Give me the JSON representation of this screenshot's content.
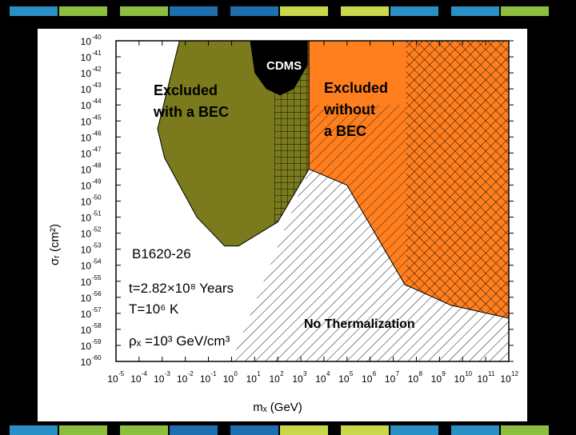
{
  "slide": {
    "stripe_colors": [
      "#2a8fc4",
      "#8cbf3f",
      "#1e6fb0",
      "#c9d84a"
    ]
  },
  "chart_data": {
    "type": "area",
    "x_scale": "log",
    "y_scale": "log",
    "xlabel": "mₓ (GeV)",
    "ylabel": "σᵣ (cm²)",
    "xlim": [
      -5,
      12
    ],
    "ylim": [
      -60,
      -40
    ],
    "x_ticks": [
      -5,
      -4,
      -3,
      -2,
      -1,
      0,
      1,
      2,
      3,
      4,
      5,
      6,
      7,
      8,
      9,
      10,
      11,
      12
    ],
    "y_ticks": [
      -40,
      -41,
      -42,
      -43,
      -44,
      -45,
      -46,
      -47,
      -48,
      -49,
      -50,
      -51,
      -52,
      -53,
      -54,
      -55,
      -56,
      -57,
      -58,
      -59,
      -60
    ],
    "tick_base": "10",
    "regions": [
      {
        "label_lines": [
          "Excluded",
          "with a BEC"
        ],
        "color": "#7b7b1e",
        "polygon_log": [
          [
            -2.25,
            -40
          ],
          [
            3.35,
            -40
          ],
          [
            3.35,
            -48
          ],
          [
            2.0,
            -51.3
          ],
          [
            0.3,
            -52.8
          ],
          [
            -0.3,
            -52.8
          ],
          [
            -1.5,
            -51
          ],
          [
            -2.9,
            -47.3
          ],
          [
            -3.2,
            -45.5
          ],
          [
            -2.25,
            -40
          ]
        ]
      },
      {
        "label_lines": [
          "CDMS"
        ],
        "color": "#000000",
        "polygon_log": [
          [
            0.8,
            -40
          ],
          [
            3.3,
            -40
          ],
          [
            3.3,
            -41.5
          ],
          [
            2.7,
            -43.0
          ],
          [
            2.1,
            -43.4
          ],
          [
            1.5,
            -43.0
          ],
          [
            1.0,
            -42.0
          ],
          [
            0.8,
            -40
          ]
        ]
      },
      {
        "label_lines": [
          "Excluded",
          "without",
          "a BEC"
        ],
        "color": "#ff7f1f",
        "polygon_log": [
          [
            3.35,
            -40
          ],
          [
            12,
            -40
          ],
          [
            12,
            -57.3
          ],
          [
            9.5,
            -56.5
          ],
          [
            7.5,
            -55.2
          ],
          [
            5.0,
            -49.0
          ],
          [
            3.35,
            -48
          ],
          [
            3.35,
            -40
          ]
        ]
      },
      {
        "label_lines": [
          "No Thermalization"
        ],
        "pattern": "diagonal-hatch",
        "polygon_log": [
          [
            0,
            -60
          ],
          [
            12,
            -60
          ],
          [
            12,
            -57.3
          ],
          [
            9.5,
            -56.5
          ],
          [
            7.5,
            -55.2
          ],
          [
            5.0,
            -49.0
          ],
          [
            3.35,
            -48
          ],
          [
            0,
            -60
          ]
        ]
      }
    ],
    "annotations": {
      "object": "B1620-26",
      "age": "t=2.82×10⁸ Years",
      "temperature": "T=10⁶ K",
      "density": "ρₓ =10³ GeV/cm³"
    }
  }
}
